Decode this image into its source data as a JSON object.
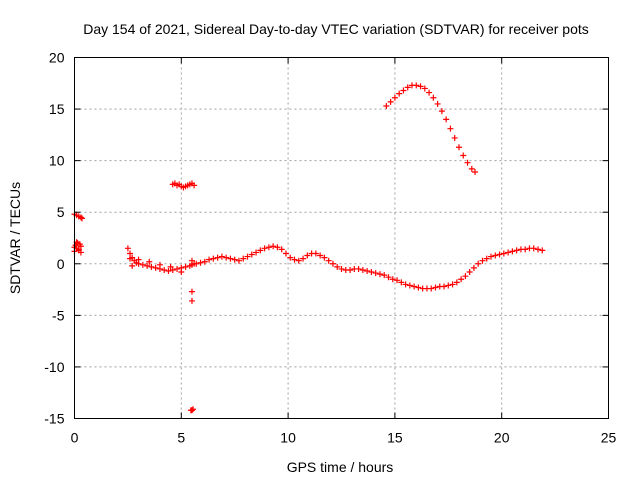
{
  "chart_data": {
    "type": "scatter",
    "title": "Day 154 of 2021, Sidereal Day-to-day VTEC variation (SDTVAR) for receiver pots",
    "xlabel": "GPS time / hours",
    "ylabel": "SDTVAR / TECUs",
    "xlim": [
      0,
      25
    ],
    "ylim": [
      -15,
      20
    ],
    "xticks": [
      0,
      5,
      10,
      15,
      20,
      25
    ],
    "yticks": [
      -15,
      -10,
      -5,
      0,
      5,
      10,
      15,
      20
    ],
    "xtick_labels": [
      "0",
      "5",
      "10",
      "15",
      "20",
      "25"
    ],
    "ytick_labels": [
      "-15",
      "-10",
      "-5",
      "0",
      "5",
      "10",
      "15",
      "20"
    ],
    "grid": true,
    "marker": "plus",
    "color": "#ff0000",
    "series": [
      {
        "name": "segment-1",
        "x": [
          0.0,
          0.1,
          0.2,
          0.3,
          0.35
        ],
        "y": [
          4.8,
          4.7,
          4.6,
          4.5,
          4.4
        ]
      },
      {
        "name": "segment-2",
        "x": [
          0.0,
          0.05,
          0.1,
          0.15,
          0.2,
          0.25,
          0.3,
          0.0,
          0.1,
          0.2,
          0.3
        ],
        "y": [
          1.6,
          1.8,
          1.5,
          2.0,
          1.3,
          1.9,
          1.7,
          1.2,
          2.1,
          1.4,
          1.1
        ]
      },
      {
        "name": "segment-3",
        "x": [
          2.5,
          2.6,
          2.7,
          2.8,
          2.9,
          3.0,
          3.2,
          3.4,
          3.6,
          3.8,
          4.0,
          4.2,
          4.4,
          4.6,
          4.8,
          5.0,
          5.2,
          5.4,
          5.5,
          5.6,
          2.6,
          2.7,
          3.0,
          3.5,
          4.0,
          4.5,
          5.0,
          5.5
        ],
        "y": [
          1.5,
          1.0,
          0.6,
          0.3,
          0.1,
          0.0,
          -0.1,
          -0.2,
          -0.3,
          -0.4,
          -0.5,
          -0.6,
          -0.7,
          -0.6,
          -0.5,
          -0.4,
          -0.3,
          -0.2,
          -0.1,
          0.0,
          0.5,
          -0.2,
          0.4,
          0.2,
          -0.1,
          -0.3,
          -0.8,
          0.3
        ]
      },
      {
        "name": "segment-4",
        "x": [
          4.6,
          4.7,
          4.8,
          4.9,
          5.0,
          5.1,
          5.2,
          5.3,
          5.4,
          5.5,
          5.6
        ],
        "y": [
          7.7,
          7.8,
          7.6,
          7.7,
          7.5,
          7.4,
          7.5,
          7.6,
          7.7,
          7.8,
          7.6
        ]
      },
      {
        "name": "segment-5",
        "x": [
          5.5,
          5.5,
          5.5,
          5.55,
          5.45
        ],
        "y": [
          -2.7,
          -3.6,
          -14.2,
          -14.1,
          -14.2
        ]
      },
      {
        "name": "segment-6",
        "x": [
          5.7,
          5.9,
          6.1,
          6.3,
          6.5,
          6.7,
          6.9,
          7.1,
          7.3,
          7.5,
          7.7,
          7.9,
          8.1,
          8.3,
          8.5,
          8.7,
          8.9,
          9.1,
          9.3,
          9.5,
          9.7,
          9.9,
          10.1,
          10.3,
          10.5,
          10.7,
          10.9,
          11.1,
          11.3,
          11.5,
          11.7,
          11.9,
          12.1,
          12.3,
          12.5,
          12.7,
          12.9,
          13.1,
          13.3,
          13.5,
          13.7,
          13.9,
          14.1,
          14.3,
          14.5,
          14.7,
          14.9,
          15.1,
          15.3,
          15.5,
          15.7,
          15.9,
          16.1,
          16.3,
          16.5,
          16.7,
          16.9,
          17.1,
          17.3,
          17.5,
          17.7,
          17.9,
          18.1,
          18.3,
          18.5,
          18.7,
          18.9,
          19.1,
          19.3,
          19.5,
          19.7,
          19.9,
          20.1,
          20.3,
          20.5,
          20.7,
          20.9,
          21.1,
          21.3,
          21.5,
          21.7,
          21.9
        ],
        "y": [
          0.0,
          0.1,
          0.2,
          0.4,
          0.5,
          0.6,
          0.7,
          0.6,
          0.5,
          0.4,
          0.3,
          0.5,
          0.7,
          0.9,
          1.1,
          1.3,
          1.5,
          1.6,
          1.7,
          1.6,
          1.4,
          1.0,
          0.6,
          0.4,
          0.3,
          0.5,
          0.8,
          1.0,
          1.0,
          0.8,
          0.6,
          0.3,
          0.0,
          -0.3,
          -0.5,
          -0.6,
          -0.6,
          -0.5,
          -0.5,
          -0.6,
          -0.7,
          -0.8,
          -0.9,
          -1.0,
          -1.1,
          -1.3,
          -1.5,
          -1.6,
          -1.8,
          -2.0,
          -2.1,
          -2.2,
          -2.3,
          -2.4,
          -2.4,
          -2.4,
          -2.3,
          -2.2,
          -2.2,
          -2.1,
          -2.0,
          -1.8,
          -1.5,
          -1.2,
          -0.8,
          -0.4,
          0.0,
          0.3,
          0.5,
          0.7,
          0.8,
          0.9,
          1.0,
          1.1,
          1.2,
          1.3,
          1.4,
          1.4,
          1.5,
          1.5,
          1.4,
          1.3
        ]
      },
      {
        "name": "segment-7",
        "x": [
          14.6,
          14.8,
          15.0,
          15.2,
          15.4,
          15.6,
          15.8,
          16.0,
          16.2,
          16.4,
          16.6,
          16.8,
          17.0,
          17.2,
          17.4,
          17.6,
          17.8,
          18.0,
          18.2,
          18.4,
          18.6,
          18.75
        ],
        "y": [
          15.3,
          15.7,
          16.1,
          16.5,
          16.8,
          17.1,
          17.3,
          17.3,
          17.2,
          17.0,
          16.6,
          16.1,
          15.5,
          14.8,
          14.0,
          13.1,
          12.2,
          11.3,
          10.5,
          9.8,
          9.2,
          8.9
        ]
      }
    ]
  }
}
